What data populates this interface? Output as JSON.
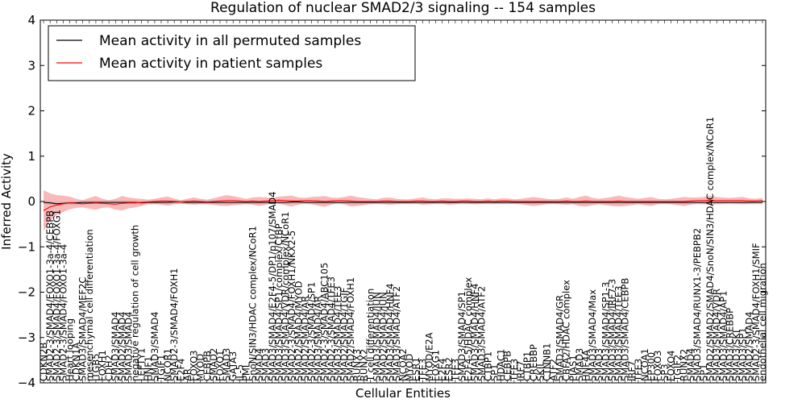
{
  "chart_data": {
    "type": "line",
    "title": "Regulation of nuclear SMAD2/3 signaling -- 154 samples",
    "xlabel": "Cellular Entities",
    "ylabel": "Inferred Activity",
    "ylim": [
      -4,
      4
    ],
    "yticks": [
      -4,
      -3,
      -2,
      -1,
      0,
      1,
      2,
      3,
      4
    ],
    "grid": false,
    "legend_position": "top-left",
    "colors": {
      "permuted": "#000000",
      "patient": "#ff0000",
      "patient_band": "#f08080",
      "permuted_band": "#b0b0b0"
    },
    "categories": [
      "CDKN2B",
      "SMAD2-3/SMAD4/FOXO1-3a-4/CEBPB",
      "SMAD2-3/SMAD4/FOXO1-3a-4/FOXG1",
      "SMAD2-3/SMAD4/FOXO1-3a-4",
      "Heart looping",
      "CDKN1A",
      "SMAD3/SMAD4/MEF2C",
      "mesenchymal cell differentiation",
      "ITGB5",
      "FOXH1",
      "CDH2",
      "SMAD3/SMAD4",
      "SMAD2/SMAD4",
      "SMAD3/SMAD4",
      "negative regulation of cell growth",
      "LEFTY1",
      "HNF1",
      "SMAD3/SMAD4",
      "TGIF1",
      "NCOR1",
      "SMAD2-3/SMAD4/FOXH1",
      "E2F4",
      "AR",
      "FOXO3",
      "MYOD",
      "CEBPB",
      "SMAD2",
      "FOXO1",
      "SMAD3",
      "GATA3",
      "IL-5",
      "PML",
      "SnoN/SIN3/HDAC complex/NCoR1",
      "SMAD4",
      "SMAD3",
      "SMAD3/SMAD4/E2F4-5/DP1/p107/SMAD4",
      "SMAD3/SMAD4/SP1/complex/CtBP",
      "SMAD3/SMAD4/VDR/complex/NCoR1",
      "SMAD2-3/SMAD4/FOXH1/NKX2-5",
      "SMAD2/SMAD4/MYOD",
      "SMAD2/SMAD4/AR",
      "SMAD2-3/SMAD4/SP1",
      "SMAD3/SMAD4/AR",
      "SMAD2-3/SMAD4/ABC105",
      "SMAD2-3/SMAD4/TFE3",
      "SMAD3/SMAD4/TFE3",
      "SMAD2/SMAD4/TGIF",
      "SMAD2/SMAD4/FOXH1",
      "RUNX3",
      "RUNX2",
      "T cell differentiation",
      "SMAD3/SMAD4/JUN",
      "SMAD2/SMAD4/JUN",
      "SMAD3/SMAD4/HNF4",
      "SMAD3/SMAD4/ATF2",
      "NCOA2",
      "MYOD",
      "ESR1",
      "TFE3",
      "MYOD/E2A",
      "FOXG1",
      "E2F4",
      "ESR2",
      "TFE3",
      "SMAD3/SMAD4/SP1",
      "E2F4-5/HDAC complex",
      "SMAD3/SMAD4/HNF4",
      "SMAD3/SMAD4/ATF2",
      "CTBP1",
      "SP1",
      "HDAC1",
      "CEBPB",
      "TFE3",
      "IRF7",
      "CTBP1",
      "CREBBP",
      "SKIL",
      "CTNNB1",
      "ATF2",
      "SMAD3/SMAD4/GR",
      "CBFA2/HDAC complex",
      "PIAS1",
      "SMAD3",
      "HNF4A",
      "SMAD3/SMAD4/Max",
      "SMAD3",
      "SMAD3/SMAD4/SP1-3",
      "SMAD3/SMAD4/IRF7-3",
      "SMAD3/SMAD4/TFE3",
      "SMAD3/SMAD4/CEBPB",
      "IRF7",
      "TFE3",
      "NCOA1",
      "EP300",
      "FOXO3",
      "SP3",
      "FOXO4",
      "TGIF2",
      "RUNX2",
      "SMAD4",
      "SMAD3/SMAD4/RUNX1-3/PEBPB2",
      "SP1",
      "SMAD2/SMAD2/SMAD4/SnoN/SIN3/HDAC complex/NCoR1",
      "SMAD3/SMAD4/VDR",
      "SMAD3/SMAD4/AP1",
      "SMAD3/CREBBP",
      "SMAD3/SKI",
      "SMAD3/SP1",
      "SMAD2/SMAD4",
      "SMAD2-3/SMAD4/FOXH1/SMIF",
      "endothelial cell migration"
    ],
    "series": [
      {
        "name": "Mean activity in all permuted samples",
        "values": [
          -0.02,
          -0.03,
          -0.05,
          -0.04,
          -0.03,
          -0.03,
          -0.02,
          -0.02,
          -0.02,
          -0.02,
          -0.02,
          -0.02,
          -0.02,
          -0.02,
          -0.02,
          -0.03,
          -0.02,
          -0.02,
          -0.02,
          -0.02,
          -0.01,
          -0.01,
          -0.02,
          -0.02,
          -0.02,
          -0.02,
          -0.02,
          -0.02,
          -0.02,
          -0.02,
          -0.02,
          -0.02,
          -0.02,
          -0.02,
          -0.02,
          -0.02,
          -0.02,
          -0.02,
          -0.01,
          -0.01,
          -0.02,
          -0.02,
          -0.02,
          -0.02,
          -0.02,
          -0.02,
          -0.02,
          -0.02,
          -0.02,
          -0.02,
          -0.02,
          -0.02,
          -0.02,
          -0.02,
          -0.02,
          -0.02,
          -0.02,
          -0.02,
          -0.02,
          -0.02,
          -0.02,
          -0.02,
          -0.02,
          -0.02,
          -0.02,
          -0.02,
          -0.02,
          -0.02,
          -0.02,
          -0.02,
          -0.02,
          -0.02,
          -0.02,
          -0.02,
          -0.02,
          -0.02,
          -0.02,
          -0.02,
          -0.02,
          -0.02,
          -0.02,
          -0.02,
          -0.02,
          -0.02,
          -0.02,
          -0.02,
          -0.02,
          -0.02,
          -0.02,
          -0.02,
          -0.02,
          -0.02,
          -0.02,
          -0.02,
          -0.02,
          -0.02,
          -0.02,
          -0.02,
          -0.02,
          -0.02,
          -0.02,
          -0.02,
          -0.02,
          -0.02,
          -0.02,
          -0.02,
          -0.02,
          -0.02,
          -0.02,
          -0.02,
          -0.02
        ]
      },
      {
        "name": "Mean activity in patient samples",
        "values": [
          -0.2,
          -0.12,
          -0.08,
          -0.05,
          -0.03,
          -0.04,
          -0.05,
          -0.04,
          -0.03,
          -0.04,
          -0.05,
          -0.06,
          -0.04,
          -0.03,
          -0.03,
          -0.02,
          -0.01,
          0.0,
          0.01,
          0.01,
          0.0,
          -0.01,
          0.0,
          0.01,
          0.0,
          -0.01,
          0.0,
          0.01,
          0.02,
          0.02,
          0.01,
          0.0,
          0.01,
          0.0,
          0.01,
          0.02,
          0.03,
          0.02,
          0.01,
          0.01,
          0.02,
          0.02,
          0.01,
          0.0,
          0.01,
          0.02,
          0.02,
          0.01,
          0.0,
          0.0,
          0.0,
          0.0,
          0.01,
          0.01,
          0.0,
          0.0,
          0.0,
          0.01,
          0.01,
          0.0,
          0.0,
          0.01,
          0.0,
          0.0,
          0.01,
          0.01,
          0.0,
          0.0,
          0.01,
          0.0,
          0.01,
          0.01,
          0.0,
          0.0,
          0.0,
          0.0,
          0.0,
          0.0,
          0.0,
          0.0,
          0.01,
          0.0,
          0.0,
          0.01,
          0.0,
          0.0,
          0.0,
          0.0,
          0.01,
          0.0,
          0.0,
          0.0,
          0.0,
          0.0,
          0.0,
          0.0,
          0.0,
          0.0,
          0.0,
          0.01,
          0.02,
          0.02,
          0.03,
          0.02,
          0.02,
          0.02,
          0.02,
          0.02,
          0.01,
          0.01,
          0.02
        ]
      }
    ],
    "patient_band_halfwidth": [
      0.45,
      0.3,
      0.22,
      0.18,
      0.14,
      0.1,
      0.08,
      0.12,
      0.15,
      0.1,
      0.08,
      0.12,
      0.16,
      0.12,
      0.1,
      0.08,
      0.05,
      0.06,
      0.08,
      0.1,
      0.06,
      0.04,
      0.06,
      0.08,
      0.06,
      0.05,
      0.07,
      0.1,
      0.12,
      0.1,
      0.08,
      0.06,
      0.08,
      0.1,
      0.08,
      0.06,
      0.08,
      0.1,
      0.12,
      0.08,
      0.06,
      0.08,
      0.1,
      0.12,
      0.08,
      0.06,
      0.08,
      0.12,
      0.1,
      0.08,
      0.06,
      0.05,
      0.07,
      0.08,
      0.06,
      0.05,
      0.05,
      0.06,
      0.08,
      0.06,
      0.05,
      0.06,
      0.07,
      0.06,
      0.05,
      0.06,
      0.06,
      0.05,
      0.06,
      0.05,
      0.06,
      0.06,
      0.05,
      0.06,
      0.08,
      0.1,
      0.08,
      0.06,
      0.05,
      0.06,
      0.08,
      0.06,
      0.1,
      0.12,
      0.08,
      0.06,
      0.08,
      0.1,
      0.12,
      0.1,
      0.08,
      0.06,
      0.08,
      0.1,
      0.06,
      0.05,
      0.06,
      0.08,
      0.1,
      0.08,
      0.07,
      0.08,
      0.1,
      0.08,
      0.07,
      0.06,
      0.07,
      0.08,
      0.06,
      0.05,
      0.06
    ],
    "permuted_band_halfwidth": 0.04
  }
}
